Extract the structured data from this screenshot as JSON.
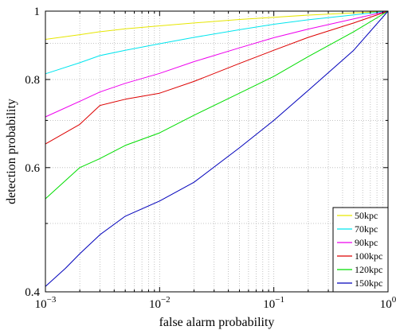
{
  "chart_data": {
    "type": "line",
    "xlabel": "false alarm probability",
    "ylabel": "detection probability",
    "xscale": "log",
    "yscale": "log",
    "xlim": [
      0.001,
      1
    ],
    "ylim": [
      0.4,
      1
    ],
    "grid": true,
    "legend_position": "bottom-right",
    "x_ticks": [
      {
        "value": 0.001,
        "base": "10",
        "exp": "−3"
      },
      {
        "value": 0.01,
        "base": "10",
        "exp": "−2"
      },
      {
        "value": 0.1,
        "base": "10",
        "exp": "−1"
      },
      {
        "value": 1,
        "base": "10",
        "exp": "0"
      }
    ],
    "y_ticks": [
      {
        "value": 0.4,
        "label": "0.4"
      },
      {
        "value": 0.6,
        "label": "0.6"
      },
      {
        "value": 0.8,
        "label": "0.8"
      },
      {
        "value": 1,
        "label": "1"
      }
    ],
    "series": [
      {
        "name": "50kpc",
        "color": "#e6e600",
        "x": [
          0.001,
          0.002,
          0.003,
          0.005,
          0.01,
          0.02,
          0.05,
          0.1,
          0.2,
          0.5,
          1
        ],
        "y": [
          0.912,
          0.926,
          0.935,
          0.944,
          0.953,
          0.962,
          0.973,
          0.98,
          0.987,
          0.994,
          1
        ]
      },
      {
        "name": "70kpc",
        "color": "#00e5ee",
        "x": [
          0.001,
          0.002,
          0.003,
          0.005,
          0.01,
          0.02,
          0.05,
          0.1,
          0.2,
          0.5,
          1
        ],
        "y": [
          0.815,
          0.845,
          0.865,
          0.88,
          0.899,
          0.918,
          0.941,
          0.958,
          0.972,
          0.988,
          1
        ]
      },
      {
        "name": "90kpc",
        "color": "#ee00ee",
        "x": [
          0.001,
          0.002,
          0.003,
          0.005,
          0.01,
          0.02,
          0.05,
          0.1,
          0.2,
          0.5,
          1
        ],
        "y": [
          0.708,
          0.745,
          0.768,
          0.79,
          0.816,
          0.848,
          0.887,
          0.917,
          0.943,
          0.975,
          1
        ]
      },
      {
        "name": "100kpc",
        "color": "#dd0000",
        "x": [
          0.001,
          0.002,
          0.003,
          0.005,
          0.01,
          0.02,
          0.05,
          0.1,
          0.2,
          0.5,
          1
        ],
        "y": [
          0.648,
          0.691,
          0.735,
          0.75,
          0.765,
          0.795,
          0.843,
          0.88,
          0.918,
          0.962,
          1
        ]
      },
      {
        "name": "120kpc",
        "color": "#00dd00",
        "x": [
          0.001,
          0.002,
          0.003,
          0.005,
          0.01,
          0.02,
          0.05,
          0.1,
          0.2,
          0.5,
          1
        ],
        "y": [
          0.542,
          0.6,
          0.618,
          0.645,
          0.672,
          0.712,
          0.765,
          0.808,
          0.862,
          0.935,
          1
        ]
      },
      {
        "name": "150kpc",
        "color": "#0000bb",
        "x": [
          0.001,
          0.0015,
          0.002,
          0.003,
          0.005,
          0.01,
          0.02,
          0.05,
          0.1,
          0.2,
          0.5,
          1
        ],
        "y": [
          0.407,
          0.432,
          0.453,
          0.482,
          0.512,
          0.538,
          0.572,
          0.64,
          0.7,
          0.772,
          0.88,
          1
        ]
      }
    ]
  }
}
